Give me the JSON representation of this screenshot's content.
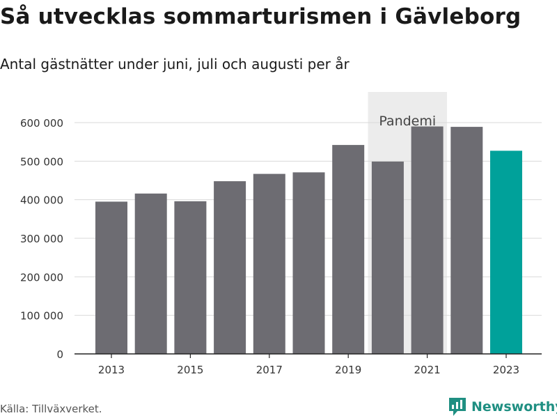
{
  "header": {
    "title": "Så utvecklas sommarturismen i Gävleborg",
    "subtitle": "Antal gästnätter under juni, juli och augusti per år"
  },
  "footer": {
    "source": "Källa: Tillväxverket.",
    "brand": "Newsworthy"
  },
  "colors": {
    "bar_default": "#6d6c72",
    "bar_highlight": "#00a19a",
    "band": "#ececec",
    "grid": "#d9d9d9",
    "brand": "#1f8f82"
  },
  "chart_data": {
    "type": "bar",
    "categories": [
      "2013",
      "2014",
      "2015",
      "2016",
      "2017",
      "2018",
      "2019",
      "2020",
      "2021",
      "2022",
      "2023"
    ],
    "values": [
      395000,
      416000,
      396000,
      448000,
      467000,
      471000,
      542000,
      499000,
      590000,
      589000,
      527000
    ],
    "highlight_category": "2023",
    "x_tick_labels": [
      "2013",
      "2015",
      "2017",
      "2019",
      "2021",
      "2023"
    ],
    "y_ticks": [
      0,
      100000,
      200000,
      300000,
      400000,
      500000,
      600000
    ],
    "y_tick_labels": [
      "0",
      "100 000",
      "200 000",
      "300 000",
      "400 000",
      "500 000",
      "600 000"
    ],
    "ylim": [
      0,
      650000
    ],
    "grid": true,
    "annotation": {
      "label": "Pandemi",
      "from": "2020",
      "to": "2021"
    }
  }
}
